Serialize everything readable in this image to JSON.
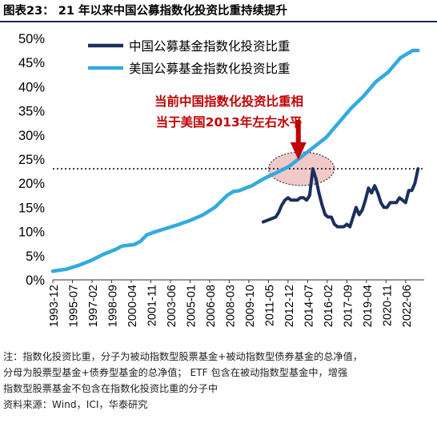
{
  "title": "图表23：  21 年以来中国公募指数化投资比重持续提升",
  "notes": [
    "注：指数化投资比重，分子为被动指数型股票基金+被动指数型债券基金的总净值，",
    "分母为股票型基金+债券型基金的总净值；  ETF 包含在被动指数型基金中，增强",
    "指数型股票基金不包含在指数化投资比重的分子中",
    "资料来源：Wind，ICI，华泰研究"
  ],
  "colors": {
    "china": "#1b2f5e",
    "usa": "#33aade",
    "annotation": "#c00000",
    "highlight": "#f0c0c0",
    "rule": "#1c2a56"
  },
  "chart_data": {
    "type": "line",
    "x_ticks": [
      "1993-12",
      "1995-07",
      "1997-02",
      "1998-09",
      "2000-04",
      "2001-11",
      "2003-06",
      "2005-01",
      "2006-08",
      "2008-03",
      "2009-10",
      "2011-05",
      "2012-12",
      "2014-07",
      "2016-02",
      "2017-09",
      "2019-04",
      "2020-11",
      "2022-06"
    ],
    "y_ticks": [
      "0%",
      "5%",
      "10%",
      "15%",
      "20%",
      "25%",
      "30%",
      "35%",
      "40%",
      "45%",
      "50%"
    ],
    "ylim": [
      0,
      50
    ],
    "reference_line": 23,
    "legend": {
      "placement": "top-left",
      "position": "inside"
    },
    "annotation": [
      "当前中国指数化投资比重相",
      "当于美国2013年左右水平"
    ],
    "series": [
      {
        "name": "中国公募基金指数化投资比重",
        "color": "#1b2f5e",
        "x": [
          "2010-12",
          "2011-06",
          "2011-12",
          "2012-03",
          "2012-06",
          "2012-09",
          "2012-12",
          "2013-03",
          "2013-06",
          "2013-09",
          "2013-12",
          "2014-03",
          "2014-06",
          "2014-09",
          "2014-12",
          "2015-03",
          "2015-06",
          "2015-09",
          "2015-12",
          "2016-03",
          "2016-06",
          "2016-09",
          "2016-12",
          "2017-03",
          "2017-06",
          "2017-09",
          "2017-12",
          "2018-03",
          "2018-06",
          "2018-09",
          "2018-12",
          "2019-03",
          "2019-06",
          "2019-09",
          "2019-12",
          "2020-03",
          "2020-06",
          "2020-09",
          "2020-12",
          "2021-03",
          "2021-06",
          "2021-09",
          "2021-12",
          "2022-03",
          "2022-06",
          "2022-09",
          "2022-12",
          "2023-03",
          "2023-06"
        ],
        "y": [
          12,
          12.5,
          13,
          14,
          15.5,
          16.5,
          17,
          16.5,
          16.5,
          16.5,
          17,
          17,
          16.5,
          17.5,
          23,
          21,
          18,
          15.5,
          13.5,
          13,
          13,
          11.5,
          11,
          11,
          11,
          11.5,
          11,
          13,
          15,
          13.5,
          14.5,
          16.5,
          19,
          18,
          19.5,
          18,
          16,
          15,
          15,
          16,
          16,
          16,
          17,
          16.5,
          16,
          18.5,
          18.5,
          20,
          23
        ]
      },
      {
        "name": "美国公募基金指数化投资比重",
        "color": "#33aade",
        "x": [
          "1993-12",
          "1995-01",
          "1996-01",
          "1997-01",
          "1998-01",
          "1999-01",
          "1999-07",
          "2000-07",
          "2001-01",
          "2001-07",
          "2002-01",
          "2003-01",
          "2004-01",
          "2005-01",
          "2006-01",
          "2007-01",
          "2008-01",
          "2008-07",
          "2009-01",
          "2009-07",
          "2010-01",
          "2011-01",
          "2012-01",
          "2013-01",
          "2014-01",
          "2015-01",
          "2016-01",
          "2017-01",
          "2018-01",
          "2019-01",
          "2020-01",
          "2021-01",
          "2022-01",
          "2023-01",
          "2023-06"
        ],
        "y": [
          1.8,
          2.2,
          3,
          4,
          5.3,
          6.3,
          7,
          7.3,
          8,
          9.3,
          9.8,
          10.6,
          11.4,
          12.3,
          13.4,
          15,
          17.5,
          18.3,
          18.5,
          19,
          19.5,
          21,
          22.2,
          23.5,
          25.5,
          27.5,
          29.5,
          32.5,
          35.5,
          38,
          41,
          43,
          46,
          47.5,
          47.5
        ]
      }
    ]
  }
}
